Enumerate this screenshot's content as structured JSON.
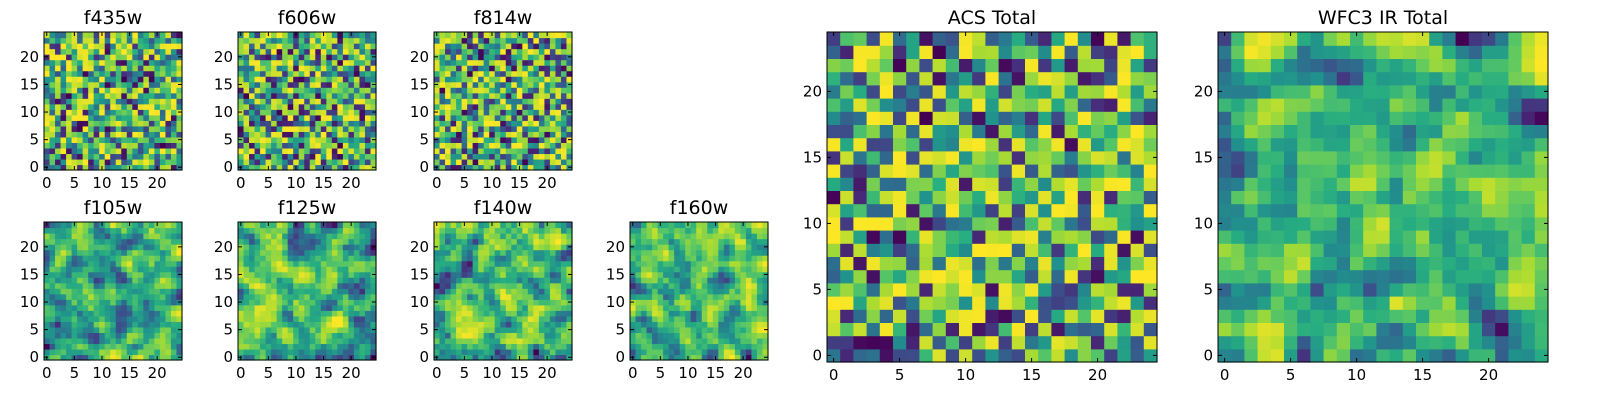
{
  "chart_data": [
    {
      "type": "heatmap",
      "title": "f435w",
      "xticks": [
        "0",
        "5",
        "10",
        "15",
        "20"
      ],
      "yticks": [
        "0",
        "5",
        "10",
        "15",
        "20"
      ],
      "x_range": [
        -0.5,
        24.5
      ],
      "y_range": [
        -0.5,
        24.5
      ],
      "grid_size": 25,
      "colormap": "viridis",
      "seed": 11,
      "noise": "white",
      "grid": false
    },
    {
      "type": "heatmap",
      "title": "f606w",
      "xticks": [
        "0",
        "5",
        "10",
        "15",
        "20"
      ],
      "yticks": [
        "0",
        "5",
        "10",
        "15",
        "20"
      ],
      "x_range": [
        -0.5,
        24.5
      ],
      "y_range": [
        -0.5,
        24.5
      ],
      "grid_size": 25,
      "colormap": "viridis",
      "seed": 23,
      "noise": "white",
      "grid": false
    },
    {
      "type": "heatmap",
      "title": "f814w",
      "xticks": [
        "0",
        "5",
        "10",
        "15",
        "20"
      ],
      "yticks": [
        "0",
        "5",
        "10",
        "15",
        "20"
      ],
      "x_range": [
        -0.5,
        24.5
      ],
      "y_range": [
        -0.5,
        24.5
      ],
      "grid_size": 25,
      "colormap": "viridis",
      "seed": 37,
      "noise": "white",
      "grid": false
    },
    {
      "type": "heatmap",
      "title": "f105w",
      "xticks": [
        "0",
        "5",
        "10",
        "15",
        "20"
      ],
      "yticks": [
        "0",
        "5",
        "10",
        "15",
        "20"
      ],
      "x_range": [
        -0.5,
        24.5
      ],
      "y_range": [
        -0.5,
        24.5
      ],
      "grid_size": 25,
      "colormap": "viridis",
      "seed": 41,
      "noise": "smooth",
      "grid": false
    },
    {
      "type": "heatmap",
      "title": "f125w",
      "xticks": [
        "0",
        "5",
        "10",
        "15",
        "20"
      ],
      "yticks": [
        "0",
        "5",
        "10",
        "15",
        "20"
      ],
      "x_range": [
        -0.5,
        24.5
      ],
      "y_range": [
        -0.5,
        24.5
      ],
      "grid_size": 25,
      "colormap": "viridis",
      "seed": 53,
      "noise": "smooth",
      "grid": false
    },
    {
      "type": "heatmap",
      "title": "f140w",
      "xticks": [
        "0",
        "5",
        "10",
        "15",
        "20"
      ],
      "yticks": [
        "0",
        "5",
        "10",
        "15",
        "20"
      ],
      "x_range": [
        -0.5,
        24.5
      ],
      "y_range": [
        -0.5,
        24.5
      ],
      "grid_size": 25,
      "colormap": "viridis",
      "seed": 67,
      "noise": "smooth",
      "grid": false
    },
    {
      "type": "heatmap",
      "title": "f160w",
      "xticks": [
        "0",
        "5",
        "10",
        "15",
        "20"
      ],
      "yticks": [
        "0",
        "5",
        "10",
        "15",
        "20"
      ],
      "x_range": [
        -0.5,
        24.5
      ],
      "y_range": [
        -0.5,
        24.5
      ],
      "grid_size": 25,
      "colormap": "viridis",
      "seed": 79,
      "noise": "smooth",
      "grid": false
    },
    {
      "type": "heatmap",
      "title": "ACS Total",
      "xticks": [
        "0",
        "5",
        "10",
        "15",
        "20"
      ],
      "yticks": [
        "0",
        "5",
        "10",
        "15",
        "20"
      ],
      "x_range": [
        -0.5,
        24.5
      ],
      "y_range": [
        -0.5,
        24.5
      ],
      "grid_size": 25,
      "colormap": "viridis",
      "seed": 97,
      "noise": "white",
      "grid": false
    },
    {
      "type": "heatmap",
      "title": "WFC3 IR Total",
      "xticks": [
        "0",
        "5",
        "10",
        "15",
        "20"
      ],
      "yticks": [
        "0",
        "5",
        "10",
        "15",
        "20"
      ],
      "x_range": [
        -0.5,
        24.5
      ],
      "y_range": [
        -0.5,
        24.5
      ],
      "grid_size": 25,
      "colormap": "viridis",
      "seed": 113,
      "noise": "smooth",
      "grid": false
    }
  ]
}
